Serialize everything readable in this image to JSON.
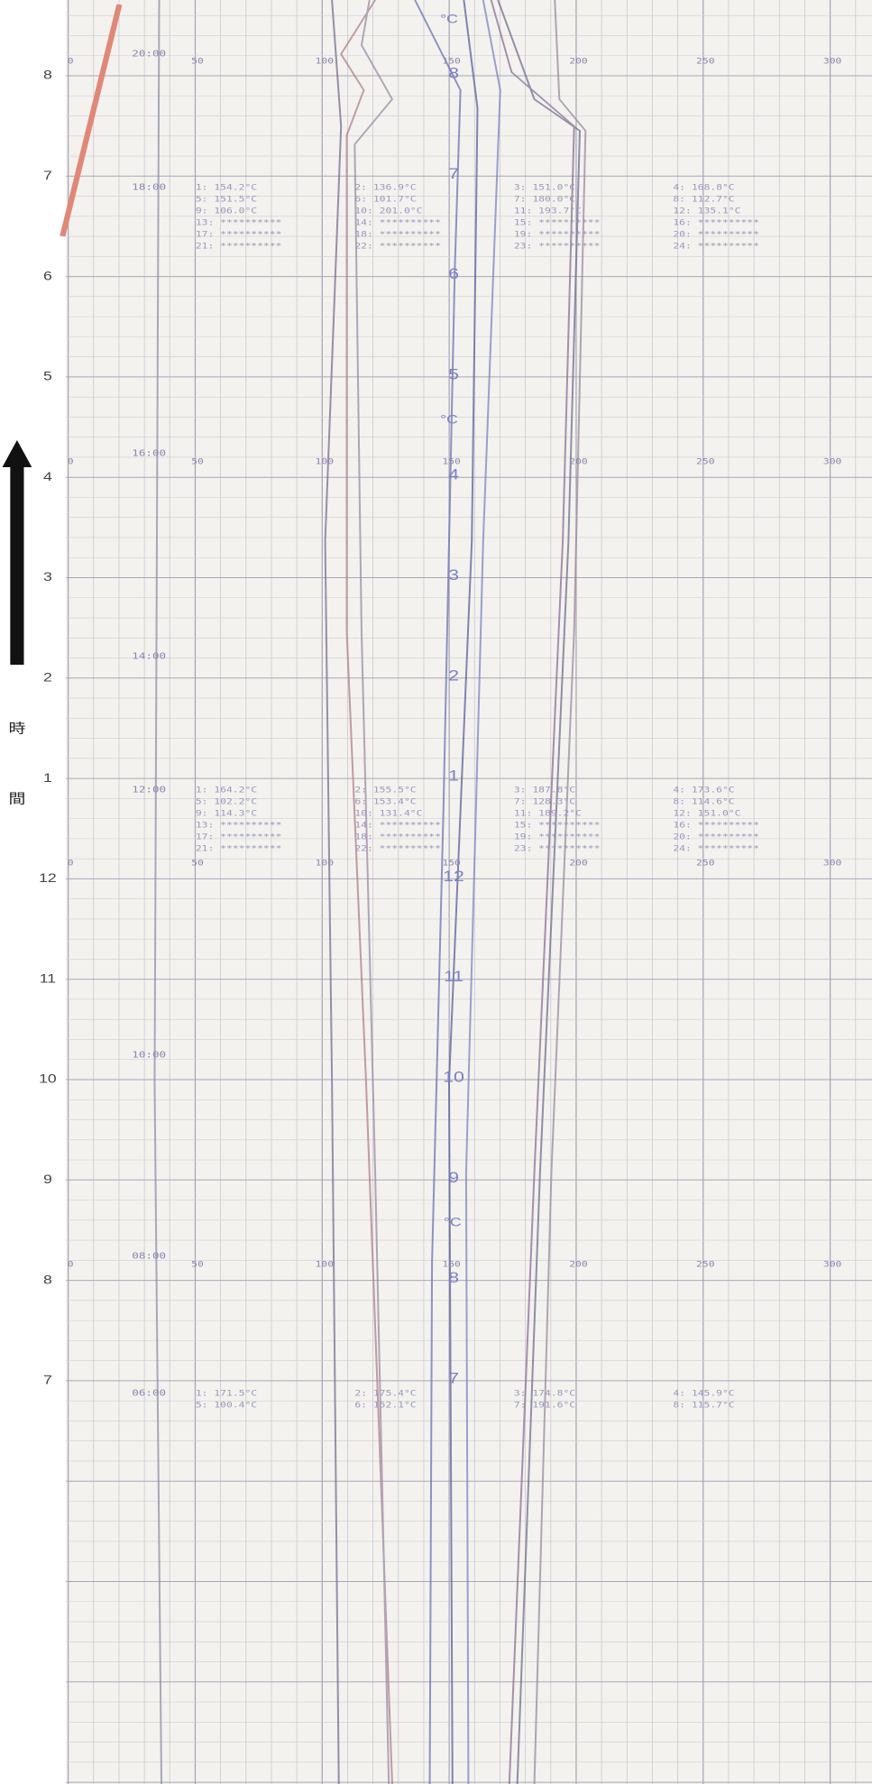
{
  "side_label": [
    "時",
    "間"
  ],
  "hour_labels": [
    "8",
    "7",
    "6",
    "5",
    "4",
    "3",
    "2",
    "1",
    "12",
    "11",
    "10",
    "9",
    "8",
    "7"
  ],
  "chart_hours": [
    "8",
    "7",
    "6",
    "5",
    "4",
    "3",
    "2",
    "1",
    "12",
    "11",
    "10",
    "9",
    "8",
    "7"
  ],
  "scale_labels": [
    "0",
    "50",
    "100",
    "150",
    "200",
    "250",
    "300"
  ],
  "unit": "°C",
  "time_stamps": [
    "20:00",
    "18:00",
    "16:00",
    "14:00",
    "12:00",
    "10:00",
    "08:00",
    "06:00"
  ],
  "readings": [
    [
      "1: 154.2°C",
      "2: 136.9°C",
      "3: 151.0°C",
      "4: 168.8°C",
      "5: 151.5°C",
      "6: 101.7°C",
      "7: 180.0°C",
      "8: 112.7°C",
      "9: 106.0°C",
      "10: 201.0°C",
      "11: 193.7°C",
      "12: 135.1°C",
      "13: **********",
      "14: **********",
      "15: **********",
      "16: **********",
      "17: **********",
      "18: **********",
      "19: **********",
      "20: **********",
      "21: **********",
      "22: **********",
      "23: **********",
      "24: **********"
    ],
    [
      "1: 164.2°C",
      "2: 155.5°C",
      "3: 187.8°C",
      "4: 173.6°C",
      "5: 102.2°C",
      "6: 153.4°C",
      "7: 128.3°C",
      "8: 114.6°C",
      "9: 114.3°C",
      "10: 131.4°C",
      "11: 189.2°C",
      "12: 151.0°C",
      "13: **********",
      "14: **********",
      "15: **********",
      "16: **********",
      "17: **********",
      "18: **********",
      "19: **********",
      "20: **********",
      "21: **********",
      "22: **********",
      "23: **********",
      "24: **********"
    ],
    [
      "1: 171.5°C",
      "2: 175.4°C",
      "3: 174.8°C",
      "4: 145.9°C",
      "5: 100.4°C",
      "6: 152.1°C",
      "7: 191.6°C",
      "8: 115.7°C"
    ]
  ]
}
